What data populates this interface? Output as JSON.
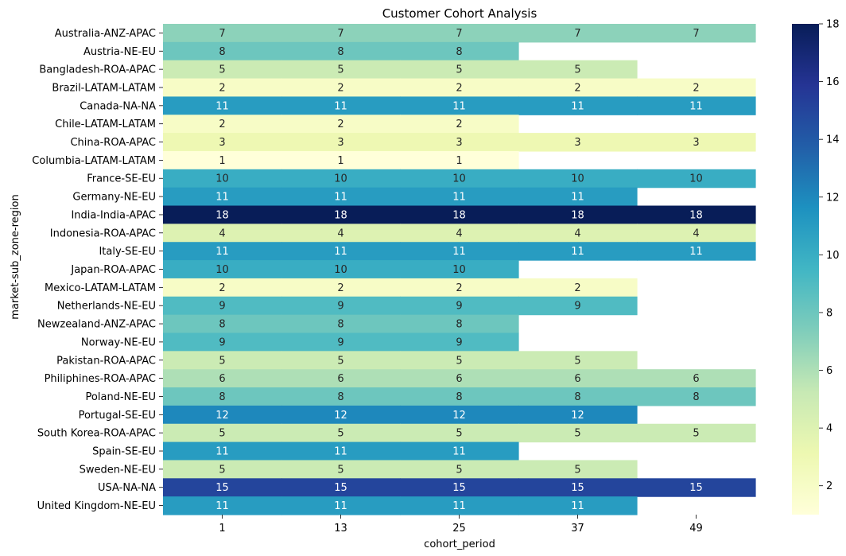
{
  "chart_data": {
    "type": "heatmap",
    "title": "Customer Cohort Analysis",
    "xlabel": "cohort_period",
    "ylabel": "market-sub_zone-region",
    "x": [
      "1",
      "13",
      "25",
      "37",
      "49"
    ],
    "y": [
      "Australia-ANZ-APAC",
      "Austria-NE-EU",
      "Bangladesh-ROA-APAC",
      "Brazil-LATAM-LATAM",
      "Canada-NA-NA",
      "Chile-LATAM-LATAM",
      "China-ROA-APAC",
      "Columbia-LATAM-LATAM",
      "France-SE-EU",
      "Germany-NE-EU",
      "India-India-APAC",
      "Indonesia-ROA-APAC",
      "Italy-SE-EU",
      "Japan-ROA-APAC",
      "Mexico-LATAM-LATAM",
      "Netherlands-NE-EU",
      "Newzealand-ANZ-APAC",
      "Norway-NE-EU",
      "Pakistan-ROA-APAC",
      "Philiphines-ROA-APAC",
      "Poland-NE-EU",
      "Portugal-SE-EU",
      "South Korea-ROA-APAC",
      "Spain-SE-EU",
      "Sweden-NE-EU",
      "USA-NA-NA",
      "United Kingdom-NE-EU"
    ],
    "values": [
      [
        7,
        7,
        7,
        7,
        7
      ],
      [
        8,
        8,
        8,
        null,
        null
      ],
      [
        5,
        5,
        5,
        5,
        null
      ],
      [
        2,
        2,
        2,
        2,
        2
      ],
      [
        11,
        11,
        11,
        11,
        11
      ],
      [
        2,
        2,
        2,
        null,
        null
      ],
      [
        3,
        3,
        3,
        3,
        3
      ],
      [
        1,
        1,
        1,
        null,
        null
      ],
      [
        10,
        10,
        10,
        10,
        10
      ],
      [
        11,
        11,
        11,
        11,
        null
      ],
      [
        18,
        18,
        18,
        18,
        18
      ],
      [
        4,
        4,
        4,
        4,
        4
      ],
      [
        11,
        11,
        11,
        11,
        11
      ],
      [
        10,
        10,
        10,
        null,
        null
      ],
      [
        2,
        2,
        2,
        2,
        null
      ],
      [
        9,
        9,
        9,
        9,
        null
      ],
      [
        8,
        8,
        8,
        null,
        null
      ],
      [
        9,
        9,
        9,
        null,
        null
      ],
      [
        5,
        5,
        5,
        5,
        null
      ],
      [
        6,
        6,
        6,
        6,
        6
      ],
      [
        8,
        8,
        8,
        8,
        8
      ],
      [
        12,
        12,
        12,
        12,
        null
      ],
      [
        5,
        5,
        5,
        5,
        5
      ],
      [
        11,
        11,
        11,
        null,
        null
      ],
      [
        5,
        5,
        5,
        5,
        null
      ],
      [
        15,
        15,
        15,
        15,
        15
      ],
      [
        11,
        11,
        11,
        11,
        null
      ]
    ],
    "colorbar": {
      "min": 1,
      "max": 18,
      "ticks": [
        2,
        4,
        6,
        8,
        10,
        12,
        14,
        16,
        18
      ],
      "colormap": "YlGnBu"
    }
  }
}
